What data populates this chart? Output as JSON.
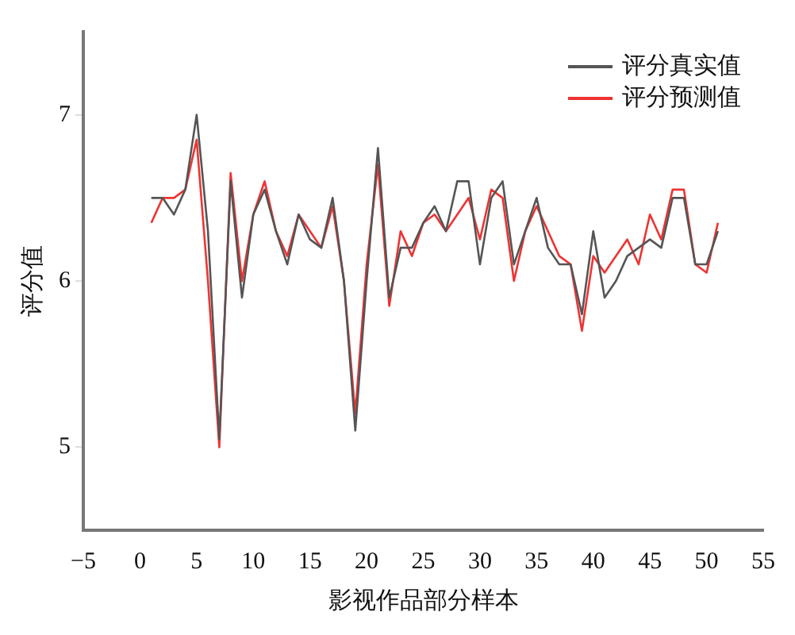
{
  "chart_data": {
    "type": "line",
    "xlabel": "影视作品部分样本",
    "ylabel": "评分值",
    "x": [
      1,
      2,
      3,
      4,
      5,
      6,
      7,
      8,
      9,
      10,
      11,
      12,
      13,
      14,
      15,
      16,
      17,
      18,
      19,
      20,
      21,
      22,
      23,
      24,
      25,
      26,
      27,
      28,
      29,
      30,
      31,
      32,
      33,
      34,
      35,
      36,
      37,
      38,
      39,
      40,
      41,
      42,
      43,
      44,
      45,
      46,
      47,
      48,
      49,
      50,
      51
    ],
    "series": [
      {
        "name": "评分真实值",
        "color": "#555555",
        "values": [
          6.5,
          6.5,
          6.4,
          6.55,
          7.0,
          6.3,
          5.05,
          6.6,
          5.9,
          6.4,
          6.55,
          6.3,
          6.1,
          6.4,
          6.25,
          6.2,
          6.5,
          6.0,
          5.1,
          6.0,
          6.8,
          5.9,
          6.2,
          6.2,
          6.35,
          6.45,
          6.3,
          6.6,
          6.6,
          6.1,
          6.5,
          6.6,
          6.1,
          6.3,
          6.5,
          6.2,
          6.1,
          6.1,
          5.8,
          6.3,
          5.9,
          6.0,
          6.15,
          6.2,
          6.25,
          6.2,
          6.5,
          6.5,
          6.1,
          6.1,
          6.3
        ]
      },
      {
        "name": "评分预测值",
        "color": "#ee3333",
        "values": [
          6.35,
          6.5,
          6.5,
          6.55,
          6.85,
          6.0,
          5.0,
          6.65,
          6.0,
          6.4,
          6.6,
          6.3,
          6.15,
          6.4,
          6.3,
          6.2,
          6.45,
          6.0,
          5.2,
          6.1,
          6.7,
          5.85,
          6.3,
          6.15,
          6.35,
          6.4,
          6.3,
          6.4,
          6.5,
          6.25,
          6.55,
          6.5,
          6.0,
          6.3,
          6.45,
          6.3,
          6.15,
          6.1,
          5.7,
          6.15,
          6.05,
          6.15,
          6.25,
          6.1,
          6.4,
          6.25,
          6.55,
          6.55,
          6.1,
          6.05,
          6.35
        ]
      }
    ],
    "xlim": [
      -5,
      55
    ],
    "xticks": [
      -5,
      0,
      5,
      10,
      15,
      20,
      25,
      30,
      35,
      40,
      45,
      50,
      55
    ],
    "ylim": [
      4.5,
      7.5
    ],
    "yticks": [
      5,
      6,
      7
    ],
    "grid": false,
    "legend": "top right",
    "marker": "none",
    "line_style": "solid"
  }
}
